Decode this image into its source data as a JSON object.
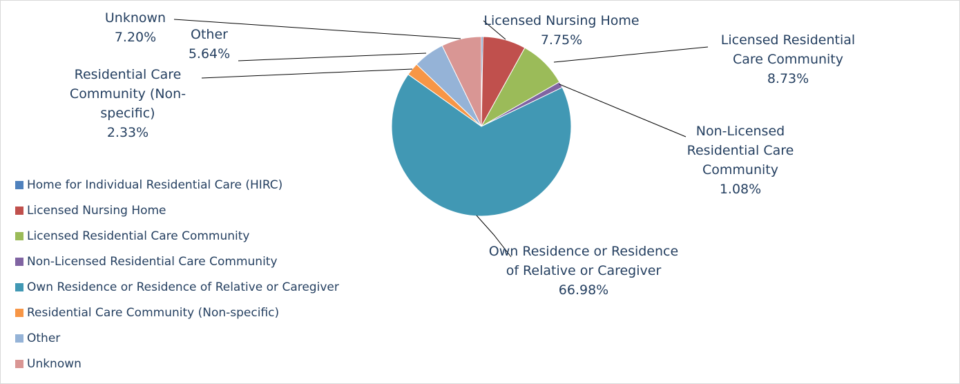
{
  "chart_data": {
    "type": "pie",
    "categories": [
      "Home for Individual Residential Care (HIRC)",
      "Licensed Nursing Home",
      "Licensed Residential Care Community",
      "Non-Licensed Residential Care Community",
      "Own Residence or Residence of Relative or Caregiver",
      "Residential Care Community (Non-specific)",
      "Other",
      "Unknown"
    ],
    "values": [
      0.29,
      7.75,
      8.73,
      1.08,
      66.98,
      2.33,
      5.64,
      7.2
    ],
    "value_labels": [
      null,
      "7.75%",
      "8.73%",
      "1.08%",
      "66.98%",
      "2.33%",
      "5.64%",
      "7.20%"
    ],
    "colors": [
      "#4f81bd",
      "#c0504d",
      "#9bbb59",
      "#8064a2",
      "#4198b4",
      "#f79646",
      "#95b3d7",
      "#d99694"
    ],
    "legend": "left"
  }
}
